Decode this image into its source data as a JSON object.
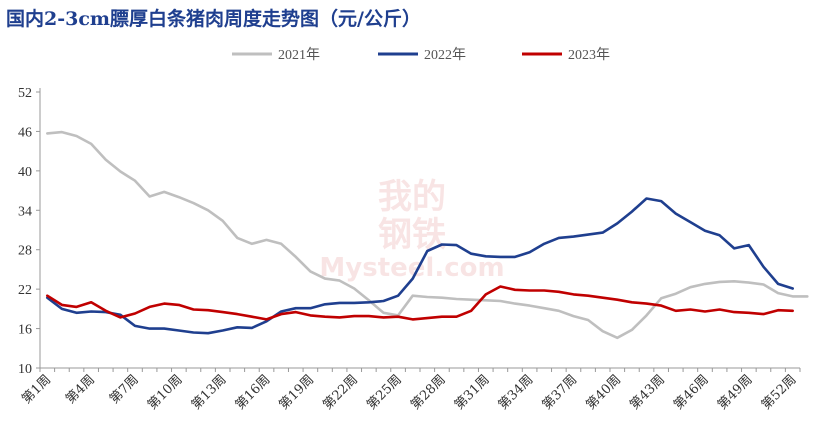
{
  "chart_data": {
    "type": "line",
    "title": "国内2-3cm膘厚白条猪肉周度走势图（元/公斤）",
    "xlabel": "",
    "ylabel": "",
    "x_ticks": [
      "第1周",
      "第4周",
      "第7周",
      "第10周",
      "第13周",
      "第16周",
      "第19周",
      "第22周",
      "第25周",
      "第28周",
      "第31周",
      "第34周",
      "第37周",
      "第40周",
      "第43周",
      "第46周",
      "第49周",
      "第52周"
    ],
    "y_ticks": [
      10,
      16,
      22,
      28,
      34,
      40,
      46,
      52
    ],
    "ylim": [
      10,
      52
    ],
    "xlim": [
      1,
      52
    ],
    "grid": false,
    "legend_position": "top-center",
    "watermark": {
      "line1": "我的",
      "line2": "钢铁",
      "line3": "Mysteel.com"
    },
    "series": [
      {
        "name": "2021年",
        "color": "#bfbfbf",
        "values": [
          45.7,
          45.9,
          45.3,
          44.1,
          41.7,
          39.9,
          38.5,
          36.1,
          36.8,
          36.0,
          35.1,
          34.0,
          32.4,
          29.8,
          28.9,
          29.5,
          28.9,
          26.9,
          24.7,
          23.6,
          23.3,
          22.1,
          20.3,
          18.4,
          18.0,
          21.0,
          20.8,
          20.7,
          20.5,
          20.4,
          20.3,
          20.2,
          19.8,
          19.5,
          19.1,
          18.7,
          17.9,
          17.3,
          15.6,
          14.6,
          15.8,
          18.0,
          20.6,
          21.3,
          22.3,
          22.8,
          23.1,
          23.2,
          23.0,
          22.7,
          21.4,
          20.9,
          20.9
        ]
      },
      {
        "name": "2022年",
        "color": "#1f3f8f",
        "values": [
          20.7,
          19.0,
          18.4,
          18.6,
          18.5,
          18.1,
          16.4,
          16.0,
          16.0,
          15.7,
          15.4,
          15.3,
          15.7,
          16.2,
          16.1,
          17.1,
          18.6,
          19.1,
          19.1,
          19.7,
          19.9,
          19.9,
          20.0,
          20.2,
          21.0,
          23.6,
          27.8,
          28.8,
          28.7,
          27.4,
          27.0,
          26.9,
          26.9,
          27.6,
          28.9,
          29.8,
          30.0,
          30.3,
          30.6,
          32.0,
          33.8,
          35.8,
          35.4,
          33.5,
          32.2,
          30.9,
          30.2,
          28.2,
          28.7,
          25.4,
          22.8,
          22.1
        ]
      },
      {
        "name": "2023年",
        "color": "#c00000",
        "values": [
          21.0,
          19.6,
          19.3,
          20.0,
          18.7,
          17.7,
          18.3,
          19.3,
          19.8,
          19.6,
          18.9,
          18.8,
          18.5,
          18.2,
          17.8,
          17.4,
          18.2,
          18.5,
          18.0,
          17.8,
          17.7,
          17.9,
          17.9,
          17.7,
          17.8,
          17.4,
          17.6,
          17.8,
          17.8,
          18.7,
          21.2,
          22.4,
          21.9,
          21.8,
          21.8,
          21.6,
          21.2,
          21.0,
          20.7,
          20.4,
          20.0,
          19.8,
          19.5,
          18.7,
          18.9,
          18.6,
          18.9,
          18.5,
          18.4,
          18.2,
          18.8,
          18.7
        ]
      }
    ]
  }
}
